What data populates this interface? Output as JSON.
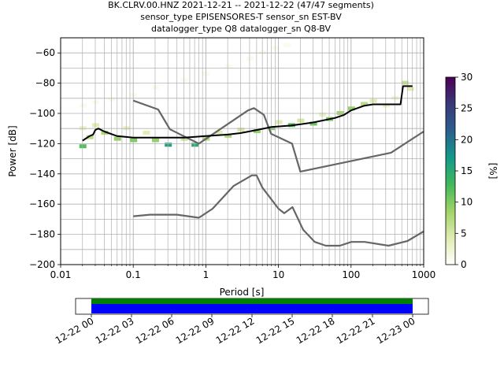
{
  "chart_data": {
    "type": "heatmap",
    "title_lines": [
      "BK.CLRV.00.HNZ   2021-12-21 -- 2021-12-22  (47/47 segments)",
      "sensor_type EPISENSORES-T sensor_sn EST-BV",
      "datalogger_type Q8 datalogger_sn Q8-BV"
    ],
    "xlabel": "Period [s]",
    "ylabel": "Power [dB]",
    "x_scale": "log",
    "xlim": [
      0.01,
      1000
    ],
    "ylim": [
      -200,
      -50
    ],
    "x_ticks": [
      {
        "value": 0.01,
        "label": "0.01"
      },
      {
        "value": 0.1,
        "label": "0.1"
      },
      {
        "value": 1,
        "label": "1"
      },
      {
        "value": 10,
        "label": "10"
      },
      {
        "value": 100,
        "label": "100"
      },
      {
        "value": 1000,
        "label": "1000"
      }
    ],
    "y_ticks": [
      {
        "value": -60,
        "label": "−60"
      },
      {
        "value": -80,
        "label": "−80"
      },
      {
        "value": -100,
        "label": "−100"
      },
      {
        "value": -120,
        "label": "−120"
      },
      {
        "value": -140,
        "label": "−140"
      },
      {
        "value": -160,
        "label": "−160"
      },
      {
        "value": -180,
        "label": "−180"
      },
      {
        "value": -200,
        "label": "−200"
      }
    ],
    "grid": true,
    "colorbar": {
      "label": "[%]",
      "range": [
        0,
        30
      ],
      "ticks": [
        {
          "value": 0,
          "label": "0"
        },
        {
          "value": 5,
          "label": "5"
        },
        {
          "value": 10,
          "label": "10"
        },
        {
          "value": 15,
          "label": "15"
        },
        {
          "value": 20,
          "label": "20"
        },
        {
          "value": 25,
          "label": "25"
        },
        {
          "value": 30,
          "label": "30"
        }
      ]
    },
    "mean_curve": {
      "color": "#000000",
      "points": [
        [
          0.02,
          -118
        ],
        [
          0.025,
          -115
        ],
        [
          0.028,
          -114
        ],
        [
          0.03,
          -111
        ],
        [
          0.033,
          -110
        ],
        [
          0.04,
          -112
        ],
        [
          0.06,
          -115
        ],
        [
          0.1,
          -116
        ],
        [
          0.2,
          -116
        ],
        [
          0.5,
          -116
        ],
        [
          1,
          -115
        ],
        [
          2,
          -114
        ],
        [
          3,
          -113
        ],
        [
          5,
          -111
        ],
        [
          8,
          -109
        ],
        [
          15,
          -108
        ],
        [
          30,
          -106
        ],
        [
          60,
          -103
        ],
        [
          80,
          -101
        ],
        [
          100,
          -98
        ],
        [
          150,
          -95
        ],
        [
          200,
          -94
        ],
        [
          400,
          -94
        ],
        [
          480,
          -94
        ],
        [
          520,
          -82
        ],
        [
          700,
          -82
        ]
      ]
    },
    "nlnm": {
      "color": "#666666",
      "points": [
        [
          0.1,
          -168
        ],
        [
          0.17,
          -167
        ],
        [
          0.4,
          -167
        ],
        [
          0.8,
          -169
        ],
        [
          1.24,
          -163
        ],
        [
          2.4,
          -148
        ],
        [
          4.3,
          -141
        ],
        [
          5,
          -141
        ],
        [
          6,
          -149
        ],
        [
          10,
          -163
        ],
        [
          12,
          -166
        ],
        [
          15.6,
          -162
        ],
        [
          21.9,
          -177
        ],
        [
          31.6,
          -185
        ],
        [
          45,
          -187.5
        ],
        [
          70,
          -187.5
        ],
        [
          101,
          -185
        ],
        [
          154,
          -185
        ],
        [
          328,
          -187.5
        ],
        [
          600,
          -184.4
        ],
        [
          1000,
          -178
        ]
      ]
    },
    "nhnm": {
      "color": "#666666",
      "points": [
        [
          0.1,
          -91.5
        ],
        [
          0.22,
          -97.4
        ],
        [
          0.32,
          -110.5
        ],
        [
          0.8,
          -120
        ],
        [
          3.8,
          -98
        ],
        [
          4.6,
          -96.5
        ],
        [
          6.3,
          -101
        ],
        [
          7.9,
          -113.5
        ],
        [
          15.4,
          -120
        ],
        [
          20,
          -138.5
        ],
        [
          354.8,
          -126
        ],
        [
          1000,
          -112
        ]
      ]
    },
    "density_cells": [
      {
        "x": 0.02,
        "y": -95,
        "pct": 1
      },
      {
        "x": 0.03,
        "y": -93,
        "pct": 1
      },
      {
        "x": 0.05,
        "y": -91,
        "pct": 1
      },
      {
        "x": 0.1,
        "y": -88,
        "pct": 1
      },
      {
        "x": 0.2,
        "y": -83,
        "pct": 1
      },
      {
        "x": 0.5,
        "y": -78,
        "pct": 1
      },
      {
        "x": 1,
        "y": -74,
        "pct": 1
      },
      {
        "x": 2,
        "y": -69,
        "pct": 1
      },
      {
        "x": 4,
        "y": -64,
        "pct": 1
      },
      {
        "x": 6,
        "y": -60,
        "pct": 1
      },
      {
        "x": 9,
        "y": -57,
        "pct": 1
      },
      {
        "x": 13,
        "y": -55,
        "pct": 1
      },
      {
        "x": 0.02,
        "y": -110,
        "pct": 3
      },
      {
        "x": 0.02,
        "y": -122,
        "pct": 12
      },
      {
        "x": 0.025,
        "y": -116,
        "pct": 7
      },
      {
        "x": 0.03,
        "y": -108,
        "pct": 4
      },
      {
        "x": 0.04,
        "y": -113,
        "pct": 8
      },
      {
        "x": 0.06,
        "y": -117,
        "pct": 9
      },
      {
        "x": 0.08,
        "y": -110,
        "pct": 3
      },
      {
        "x": 0.1,
        "y": -118,
        "pct": 10
      },
      {
        "x": 0.15,
        "y": -113,
        "pct": 4
      },
      {
        "x": 0.2,
        "y": -118,
        "pct": 9
      },
      {
        "x": 0.3,
        "y": -121,
        "pct": 16
      },
      {
        "x": 0.5,
        "y": -117,
        "pct": 6
      },
      {
        "x": 0.7,
        "y": -121,
        "pct": 15
      },
      {
        "x": 1,
        "y": -117,
        "pct": 7
      },
      {
        "x": 1.5,
        "y": -113,
        "pct": 4
      },
      {
        "x": 2,
        "y": -115,
        "pct": 8
      },
      {
        "x": 3,
        "y": -111,
        "pct": 5
      },
      {
        "x": 5,
        "y": -112,
        "pct": 9
      },
      {
        "x": 8,
        "y": -110,
        "pct": 10
      },
      {
        "x": 10,
        "y": -106,
        "pct": 4
      },
      {
        "x": 15,
        "y": -108,
        "pct": 12
      },
      {
        "x": 20,
        "y": -105,
        "pct": 5
      },
      {
        "x": 30,
        "y": -107,
        "pct": 11
      },
      {
        "x": 40,
        "y": -101,
        "pct": 3
      },
      {
        "x": 50,
        "y": -104,
        "pct": 10
      },
      {
        "x": 70,
        "y": -100,
        "pct": 8
      },
      {
        "x": 100,
        "y": -97,
        "pct": 9
      },
      {
        "x": 150,
        "y": -94,
        "pct": 7
      },
      {
        "x": 200,
        "y": -92,
        "pct": 4
      },
      {
        "x": 300,
        "y": -95,
        "pct": 3
      },
      {
        "x": 400,
        "y": -90,
        "pct": 2
      },
      {
        "x": 550,
        "y": -80,
        "pct": 6
      },
      {
        "x": 650,
        "y": -84,
        "pct": 4
      }
    ],
    "colormap_stops": [
      "#ffffff",
      "#e0ecb0",
      "#9fd466",
      "#3fb85a",
      "#14998a",
      "#2a5f8f",
      "#3a3877",
      "#4b0055"
    ]
  },
  "coverage": {
    "ticks": [
      {
        "label": "12-22 00"
      },
      {
        "label": "12-22 03"
      },
      {
        "label": "12-22 06"
      },
      {
        "label": "12-22 09"
      },
      {
        "label": "12-22 12"
      },
      {
        "label": "12-22 15"
      },
      {
        "label": "12-22 18"
      },
      {
        "label": "12-22 21"
      },
      {
        "label": "12-23 00"
      }
    ],
    "bar_colors": [
      "#008000",
      "#0000ff"
    ]
  }
}
